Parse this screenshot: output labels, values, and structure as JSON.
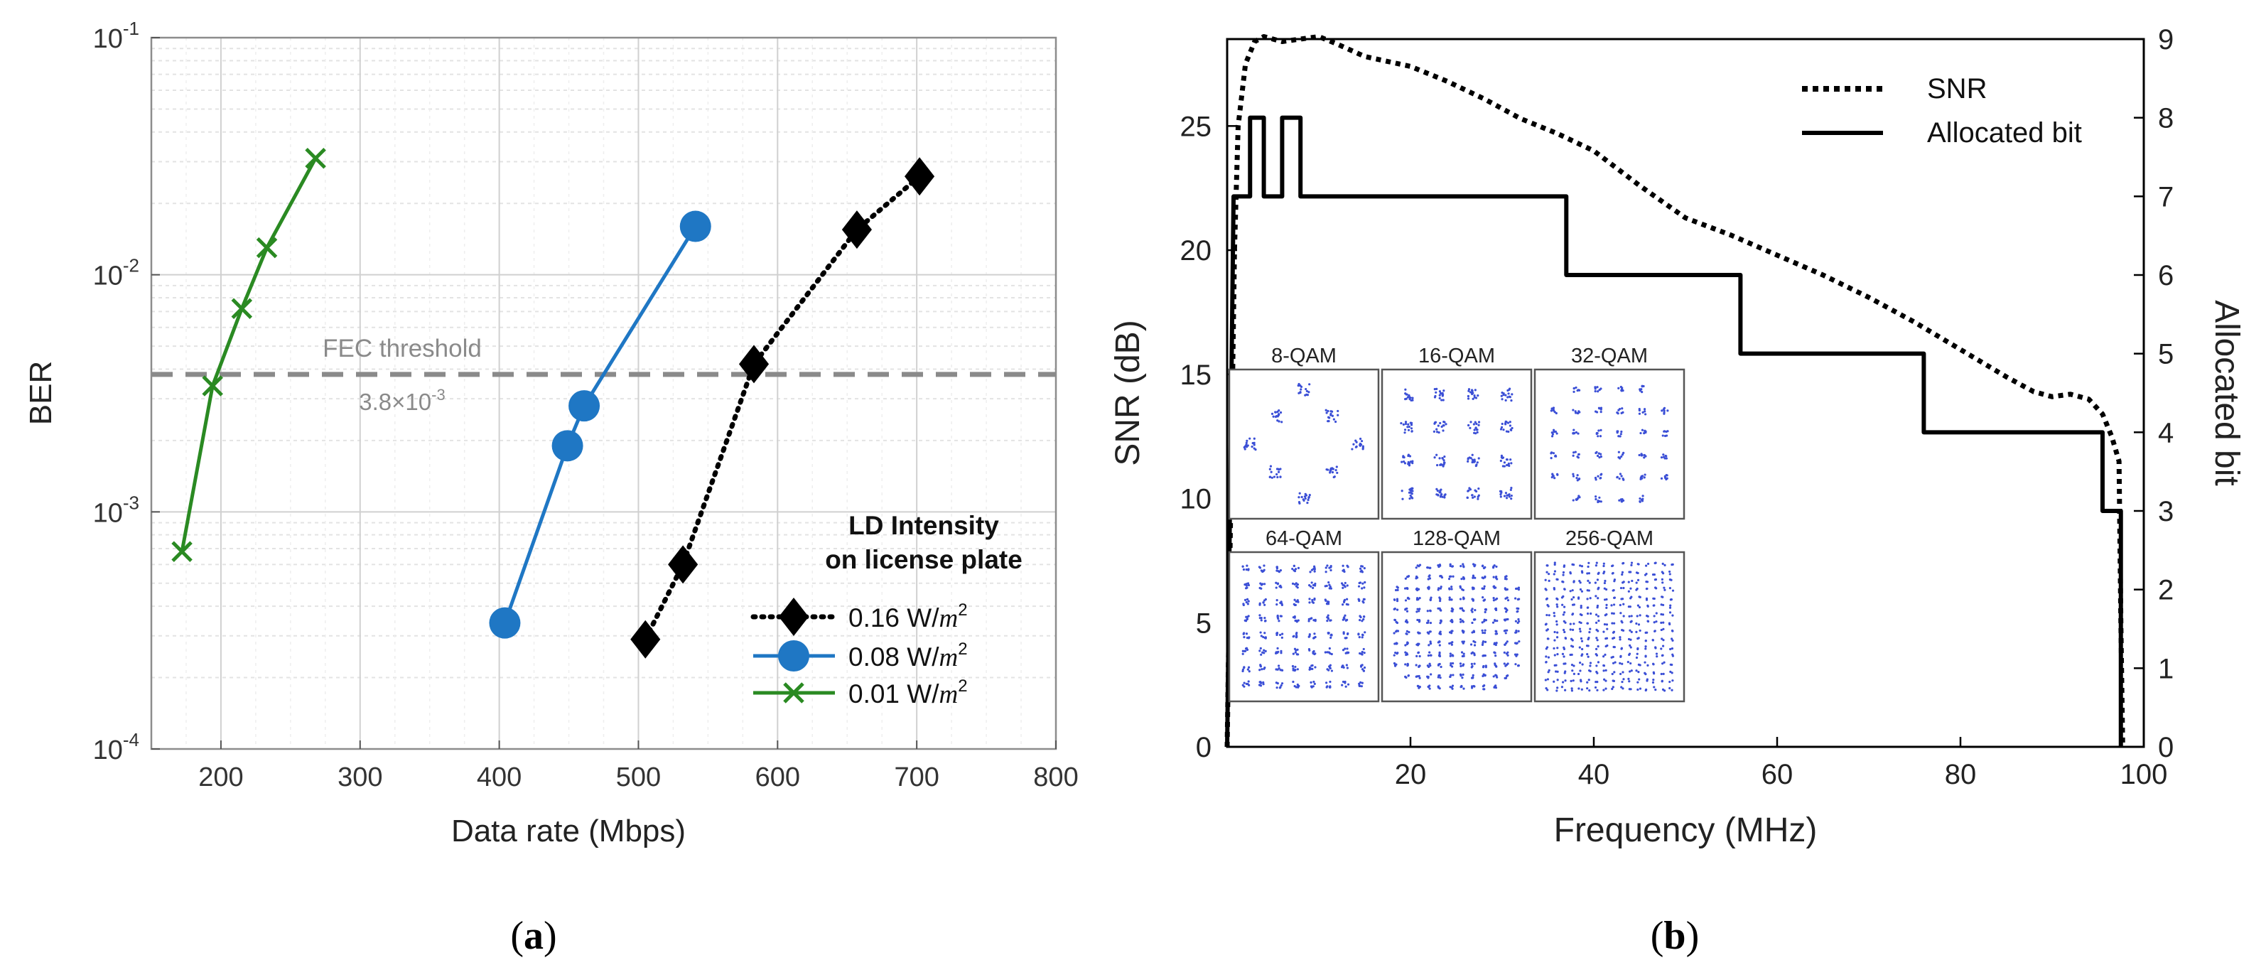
{
  "chart_data": [
    {
      "panel_label": "(a)",
      "panel_letter": "a",
      "type": "line",
      "xlabel": "Data rate (Mbps)",
      "ylabel": "BER",
      "xlim": [
        150,
        800
      ],
      "ylim": [
        0.0001,
        0.1
      ],
      "yscale": "log",
      "grid": true,
      "x_ticks": [
        "200",
        "300",
        "400",
        "500",
        "600",
        "700",
        "800"
      ],
      "x_tick_values": [
        200,
        300,
        400,
        500,
        600,
        700,
        800
      ],
      "y_ticks": [
        {
          "base": "10",
          "exp": "-4",
          "value": 0.0001
        },
        {
          "base": "10",
          "exp": "-3",
          "value": 0.001
        },
        {
          "base": "10",
          "exp": "-2",
          "value": 0.01
        },
        {
          "base": "10",
          "exp": "-1",
          "value": 0.1
        }
      ],
      "threshold": {
        "value": 0.0038,
        "label": "FEC threshold",
        "value_label_base": "3.8×10",
        "value_label_exp": "-3"
      },
      "legend": {
        "title_line1": "LD Intensity",
        "title_line2": "on license plate",
        "position": "bottom-right"
      },
      "series": [
        {
          "name": "0.16 W/m²",
          "label_value": "0.16 W/",
          "label_unit": "m",
          "label_exp": "2",
          "color": "#000000",
          "line_style": "dotted",
          "marker": "diamond",
          "x": [
            505,
            532,
            583,
            657,
            702
          ],
          "y": [
            0.00029,
            0.0006,
            0.0042,
            0.0155,
            0.026
          ]
        },
        {
          "name": "0.08 W/m²",
          "label_value": "0.08 W/",
          "label_unit": "m",
          "label_exp": "2",
          "color": "#1f77c4",
          "line_style": "solid",
          "marker": "circle",
          "x": [
            404,
            449,
            461,
            541
          ],
          "y": [
            0.00034,
            0.0019,
            0.0028,
            0.016
          ]
        },
        {
          "name": "0.01 W/m²",
          "label_value": "0.01 W/",
          "label_unit": "m",
          "label_exp": "2",
          "color": "#2a8a22",
          "line_style": "solid",
          "marker": "x",
          "x": [
            172,
            194,
            215,
            233,
            268
          ],
          "y": [
            0.00068,
            0.0034,
            0.0072,
            0.013,
            0.031
          ]
        }
      ]
    },
    {
      "panel_label": "(b)",
      "panel_letter": "b",
      "type": "line",
      "xlabel": "Frequency (MHz)",
      "ylabel": "SNR (dB)",
      "y2label": "Allocated bit",
      "xlim": [
        0,
        100
      ],
      "ylim": [
        0,
        28.5
      ],
      "y2lim": [
        0,
        9
      ],
      "x_ticks": [
        "20",
        "40",
        "60",
        "80",
        "100"
      ],
      "x_tick_values": [
        20,
        40,
        60,
        80,
        100
      ],
      "y_ticks": [
        "0",
        "5",
        "10",
        "15",
        "20",
        "25"
      ],
      "y_tick_values": [
        0,
        5,
        10,
        15,
        20,
        25
      ],
      "y2_ticks": [
        "0",
        "1",
        "2",
        "3",
        "4",
        "5",
        "6",
        "7",
        "8",
        "9"
      ],
      "y2_tick_values": [
        0,
        1,
        2,
        3,
        4,
        5,
        6,
        7,
        8,
        9
      ],
      "legend": {
        "position": "top-right"
      },
      "series": [
        {
          "name": "SNR",
          "axis": "left",
          "line_style": "dotted",
          "color": "#000000",
          "x": [
            0,
            0.4,
            0.8,
            1.2,
            2,
            3,
            4,
            6,
            8,
            10,
            12,
            15,
            20,
            24,
            28,
            30,
            32,
            36,
            40,
            45,
            50,
            55,
            60,
            65,
            70,
            75,
            80,
            85,
            88,
            90,
            92,
            94,
            95.5,
            96.5,
            97.3,
            97.5,
            97.7
          ],
          "y": [
            0,
            10,
            20,
            25,
            27.5,
            28.4,
            28.6,
            28.4,
            28.5,
            28.6,
            28.3,
            27.8,
            27.4,
            26.8,
            26.1,
            25.7,
            25.3,
            24.7,
            24,
            22.6,
            21.3,
            20.6,
            19.8,
            19,
            18.1,
            17.1,
            16,
            14.9,
            14.3,
            14.1,
            14.2,
            14,
            13.4,
            12.5,
            11.5,
            5,
            0
          ]
        },
        {
          "name": "Allocated bit",
          "axis": "right",
          "line_style": "solid",
          "color": "#000000",
          "x": [
            0,
            0.7,
            0.7,
            2.5,
            2.5,
            4,
            4,
            6,
            6,
            8,
            8,
            10,
            10,
            37,
            37,
            56,
            56,
            76,
            76,
            95.5,
            95.5,
            97.5,
            97.5
          ],
          "y": [
            0,
            7,
            7,
            7,
            8,
            8,
            7,
            7,
            8,
            8,
            7,
            7,
            7,
            7,
            6,
            6,
            5,
            5,
            4,
            4,
            3,
            3,
            0
          ]
        }
      ]
    }
  ],
  "inset": {
    "constellations": [
      {
        "label": "8-QAM",
        "order": 8
      },
      {
        "label": "16-QAM",
        "order": 16
      },
      {
        "label": "32-QAM",
        "order": 32
      },
      {
        "label": "64-QAM",
        "order": 64
      },
      {
        "label": "128-QAM",
        "order": 128
      },
      {
        "label": "256-QAM",
        "order": 256
      }
    ],
    "point_color": "#3b4fd6"
  }
}
